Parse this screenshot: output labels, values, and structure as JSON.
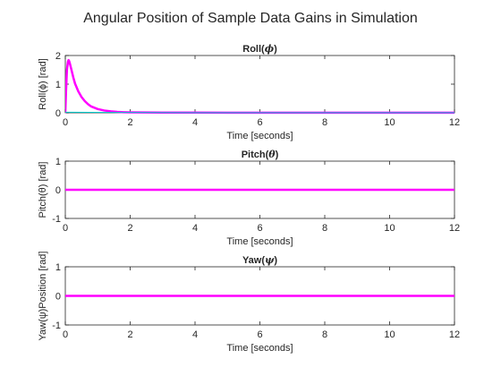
{
  "figure_title": "Angular Position of Sample Data Gains in Simulation",
  "colors": {
    "primary": "#ff00ff",
    "secondary": "#00c8c8",
    "axis": "#262626"
  },
  "chart_data": [
    {
      "type": "line",
      "title": "Roll",
      "title_symbol": "ϕ",
      "xlabel": "Time [seconds]",
      "ylabel": "Roll(ϕ) [rad]",
      "xlim": [
        0,
        12
      ],
      "ylim": [
        0,
        2
      ],
      "xticks": [
        "0",
        "2",
        "4",
        "6",
        "8",
        "10",
        "12"
      ],
      "yticks": [
        "0",
        "1",
        "2"
      ],
      "grid": false,
      "series": [
        {
          "color": "#ff00ff",
          "line_width": 2.5,
          "x": [
            0,
            0.02,
            0.05,
            0.08,
            0.1,
            0.12,
            0.15,
            0.2,
            0.25,
            0.3,
            0.4,
            0.5,
            0.6,
            0.7,
            0.8,
            1.0,
            1.2,
            1.4,
            1.6,
            1.8,
            2.0,
            2.5,
            3.0,
            4.0,
            6.0,
            8.0,
            10.0,
            12.0
          ],
          "y": [
            0.02,
            0.7,
            1.5,
            1.78,
            1.84,
            1.8,
            1.68,
            1.45,
            1.22,
            1.02,
            0.75,
            0.55,
            0.41,
            0.3,
            0.22,
            0.13,
            0.08,
            0.05,
            0.03,
            0.02,
            0.015,
            0.01,
            0.008,
            0.006,
            0.005,
            0.005,
            0.005,
            0.005
          ]
        },
        {
          "color": "#00c8c8",
          "line_width": 1,
          "x": [
            0,
            2,
            4,
            6,
            8,
            10,
            12
          ],
          "y": [
            0.02,
            0.01,
            0.005,
            0.005,
            0.005,
            0.005,
            0.005
          ]
        }
      ]
    },
    {
      "type": "line",
      "title": "Pitch",
      "title_symbol": "θ",
      "xlabel": "Time [seconds]",
      "ylabel": "Pitch(θ) [rad]",
      "xlim": [
        0,
        12
      ],
      "ylim": [
        -1,
        1
      ],
      "xticks": [
        "0",
        "2",
        "4",
        "6",
        "8",
        "10",
        "12"
      ],
      "yticks": [
        "-1",
        "0",
        "1"
      ],
      "grid": false,
      "series": [
        {
          "color": "#ff00ff",
          "line_width": 2.5,
          "x": [
            0,
            12
          ],
          "y": [
            0,
            0
          ]
        }
      ]
    },
    {
      "type": "line",
      "title": "Yaw",
      "title_symbol": "ψ",
      "xlabel": "Time [seconds]",
      "ylabel": "Yaw(ψ)Position [rad]",
      "xlim": [
        0,
        12
      ],
      "ylim": [
        -1,
        1
      ],
      "xticks": [
        "0",
        "2",
        "4",
        "6",
        "8",
        "10",
        "12"
      ],
      "yticks": [
        "-1",
        "0",
        "1"
      ],
      "grid": false,
      "series": [
        {
          "color": "#ff00ff",
          "line_width": 2.5,
          "x": [
            0,
            12
          ],
          "y": [
            0,
            0
          ]
        }
      ]
    }
  ]
}
